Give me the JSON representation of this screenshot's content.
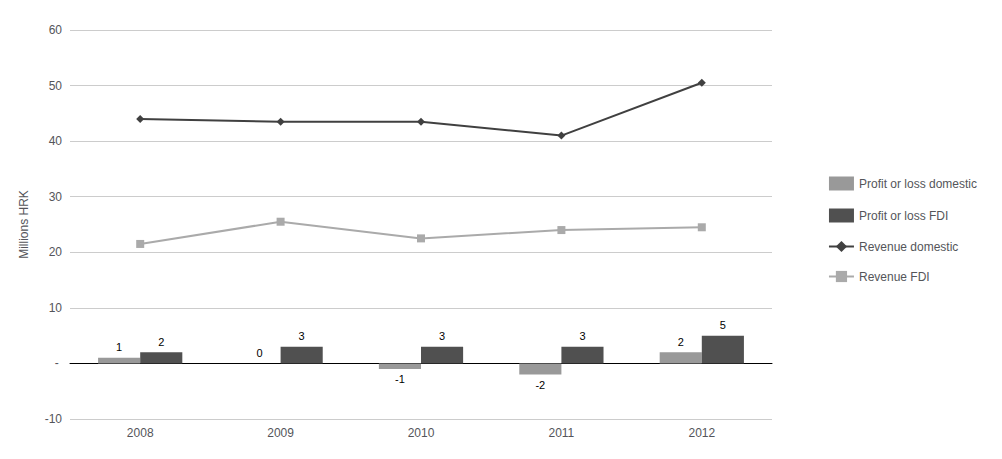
{
  "chart_data": {
    "type": "bar",
    "categories": [
      "2008",
      "2009",
      "2010",
      "2011",
      "2012"
    ],
    "series": [
      {
        "name": "Profit or loss domestic",
        "type": "bar",
        "color": "#999999",
        "values": [
          1,
          0,
          -1,
          -2,
          2
        ],
        "data_labels": true
      },
      {
        "name": "Profit or loss FDI",
        "type": "bar",
        "color": "#505050",
        "values": [
          2,
          3,
          3,
          3,
          5
        ],
        "data_labels": true
      },
      {
        "name": "Revenue domestic",
        "type": "line",
        "color": "#404040",
        "marker": "diamond",
        "values": [
          44.0,
          43.5,
          43.5,
          41.0,
          50.5
        ]
      },
      {
        "name": "Revenue FDI",
        "type": "line",
        "color": "#aaaaaa",
        "marker": "square",
        "values": [
          21.5,
          25.5,
          22.5,
          24.0,
          24.5
        ]
      }
    ],
    "ylabel": "Millions HRK",
    "ylim": [
      -10,
      60
    ],
    "yticks": [
      -10,
      {
        "value": 0,
        "label": " - "
      },
      10,
      20,
      30,
      40,
      50,
      60
    ],
    "grid": true,
    "legend": "right"
  }
}
